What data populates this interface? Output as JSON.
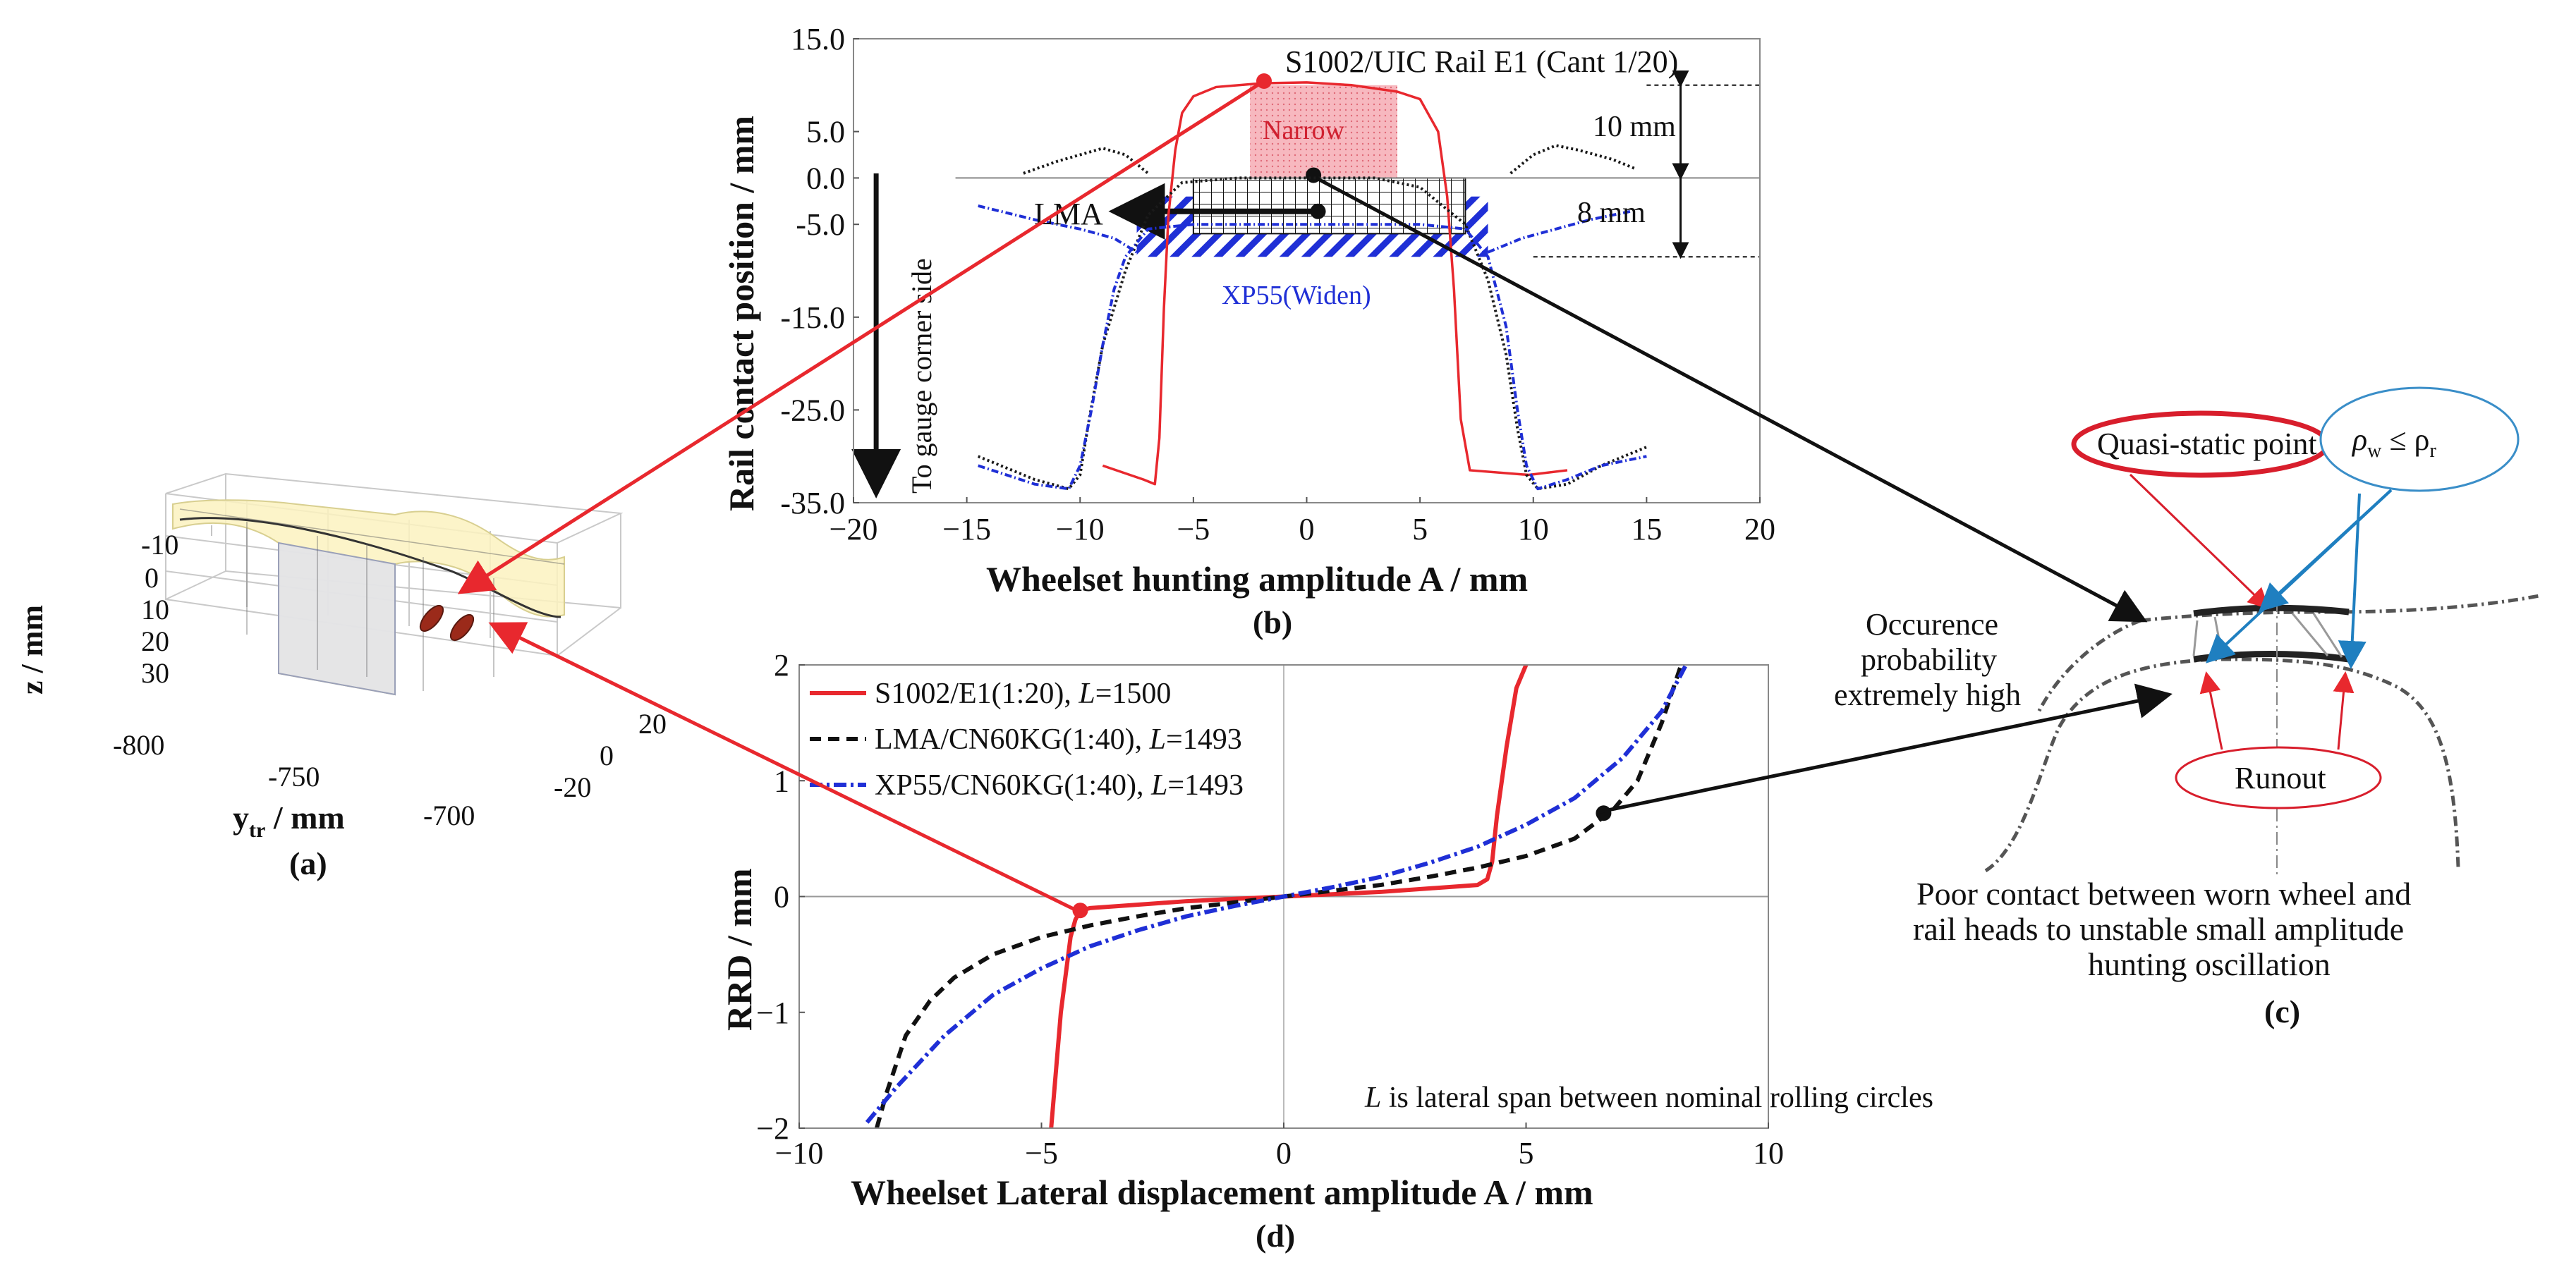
{
  "figure": {
    "label_a": "(a)",
    "label_b": "(b)",
    "label_c": "(c)",
    "label_d": "(d)"
  },
  "panel_a": {
    "zlabel": "z / mm",
    "xlabel": "ytr / mm",
    "xlabel_main": "y",
    "xlabel_sub": "tr",
    "xlabel_unit": " / mm",
    "z_ticks": [
      "-10",
      "0",
      "10",
      "20",
      "30"
    ],
    "x_ticks": [
      "-800",
      "-750",
      "-700"
    ],
    "y_ticks": [
      "20",
      "0",
      "-20"
    ]
  },
  "panel_c": {
    "quasi_static": "Quasi-static point",
    "rho_w": "ρ",
    "rho_w_sub": "w",
    "rho_le": " ≤ ρ",
    "rho_r_sub": "r",
    "occurrence_line1": "Occurence",
    "occurrence_line2": "probability",
    "occurrence_line3": "extremely high",
    "runout": "Runout",
    "caption_line1": "Poor contact between worn wheel and",
    "caption_line2": "rail heads to unstable small amplitude",
    "caption_line3": "hunting oscillation"
  },
  "chart_data": [
    {
      "id": "b",
      "type": "line",
      "title": "S1002/UIC Rail E1 (Cant 1/20)",
      "xlabel": "Wheelset hunting amplitude A / mm",
      "ylabel": "Rail contact position / mm",
      "xlim": [
        -20,
        20
      ],
      "ylim": [
        -35,
        15
      ],
      "x_ticks": [
        -20,
        -15,
        -10,
        -5,
        0,
        5,
        10,
        15,
        20
      ],
      "x_tick_labels": [
        "−20",
        "−15",
        "−10",
        "−5",
        "0",
        "5",
        "10",
        "15",
        "20"
      ],
      "y_ticks": [
        15,
        5,
        0,
        -5,
        -15,
        -25,
        -35
      ],
      "y_tick_labels": [
        "15.0",
        "5.0",
        "0.0",
        "-5.0",
        "-15.0",
        "-25.0",
        "-35.0"
      ],
      "annotations": {
        "narrow": "Narrow",
        "lma": "LMA",
        "xp55": "XP55(Widen)",
        "dim_10": "10 mm",
        "dim_8": "8 mm",
        "gauge": "To gauge corner side"
      },
      "regions": {
        "narrow": {
          "x": [
            -2.5,
            4
          ],
          "y": [
            0,
            10
          ]
        },
        "lma": {
          "x": [
            -5,
            7
          ],
          "y": [
            -6,
            0
          ]
        },
        "xp55": {
          "x": [
            -7.5,
            8
          ],
          "y": [
            -8.5,
            -2
          ]
        }
      },
      "series": [
        {
          "name": "S1002/UIC Rail E1",
          "color": "#e8282e",
          "dash": "",
          "x": [
            -9,
            -7.2,
            -6.7,
            -6.5,
            -6.3,
            -6.1,
            -5.8,
            -5.5,
            -5,
            -4,
            -2,
            0,
            2,
            4,
            5,
            5.8,
            6.2,
            6.5,
            6.8,
            7.2,
            9.8,
            11.5
          ],
          "y": [
            -31,
            -32.5,
            -33,
            -28,
            -14,
            -4,
            3,
            7,
            8.8,
            9.8,
            10.2,
            10.3,
            10,
            9.3,
            8.5,
            5,
            -2,
            -12,
            -26,
            -31.5,
            -32,
            -31.5
          ]
        },
        {
          "name": "LMA",
          "color": "#1a1a1a",
          "dash": "3,4",
          "x": [
            -14.5,
            -12,
            -10.5,
            -10,
            -9.6,
            -9,
            -8,
            -7,
            -5.5,
            -3,
            0,
            3,
            5,
            6,
            7,
            8,
            8.8,
            9.3,
            9.7,
            10.2,
            11.5,
            13,
            15
          ],
          "y": [
            -30,
            -32.5,
            -33.5,
            -32,
            -26,
            -18,
            -10,
            -4,
            -0.5,
            0,
            0,
            0,
            -1,
            -3,
            -5,
            -11,
            -19,
            -27,
            -32,
            -33.5,
            -33,
            -31,
            -29
          ]
        },
        {
          "name": "LMA-top",
          "color": "#1a1a1a",
          "dash": "3,4",
          "x": [
            -12.5,
            -11,
            -9,
            -8,
            -7
          ],
          "y": [
            0.5,
            1.8,
            3.2,
            2.5,
            0.5
          ]
        },
        {
          "name": "LMA-top-right",
          "color": "#1a1a1a",
          "dash": "3,4",
          "x": [
            9,
            10,
            11,
            12,
            13.5,
            14.5
          ],
          "y": [
            0.5,
            2.5,
            3.5,
            3,
            2,
            1
          ]
        },
        {
          "name": "XP55",
          "color": "#1f2fd6",
          "dash": "10,4,2,4",
          "x": [
            -14.5,
            -12,
            -10.5,
            -10,
            -9.5,
            -9,
            -8.5,
            -8,
            -7,
            -5,
            0,
            5,
            7,
            8,
            8.8,
            9.3,
            9.7,
            10.2,
            11.5,
            13,
            15
          ],
          "y": [
            -31,
            -33,
            -33.5,
            -31,
            -25,
            -18,
            -12,
            -8.5,
            -5.5,
            -5,
            -5,
            -5,
            -5.5,
            -8.5,
            -16,
            -25,
            -31,
            -33.5,
            -32.5,
            -31,
            -30
          ]
        },
        {
          "name": "XP55-left-arm",
          "color": "#1f2fd6",
          "dash": "10,4,2,4",
          "x": [
            -14.5,
            -12,
            -10,
            -8.5,
            -7.5
          ],
          "y": [
            -3,
            -4.5,
            -5.5,
            -6.5,
            -8
          ]
        },
        {
          "name": "XP55-right-arm",
          "color": "#1f2fd6",
          "dash": "10,4,2,4",
          "x": [
            8,
            9.5,
            11,
            12.5,
            14.5
          ],
          "y": [
            -8,
            -6.5,
            -5.5,
            -4.5,
            -3.5
          ]
        }
      ]
    },
    {
      "id": "d",
      "type": "line",
      "title": "",
      "xlabel": "Wheelset Lateral displacement amplitude A / mm",
      "ylabel": "RRD / mm",
      "xlim": [
        -10,
        10
      ],
      "ylim": [
        -2,
        2
      ],
      "x_ticks": [
        -10,
        -5,
        0,
        5,
        10
      ],
      "x_tick_labels": [
        "−10",
        "−5",
        "0",
        "5",
        "10"
      ],
      "y_ticks": [
        -2,
        -1,
        0,
        1,
        2
      ],
      "y_tick_labels": [
        "−2",
        "−1",
        "0",
        "1",
        "2"
      ],
      "note": "is lateral span between nominal rolling circles",
      "note_var": "L",
      "legend": [
        {
          "text": "S1002/E1(1:20), ",
          "var": "L",
          "eq": "=1500"
        },
        {
          "text": "LMA/CN60KG(1:40), ",
          "var": "L",
          "eq": "=1493"
        },
        {
          "text": "XP55/CN60KG(1:40), ",
          "var": "L",
          "eq": "=1493"
        }
      ],
      "series": [
        {
          "name": "S1002/E1(1:20), L=1500",
          "color": "#e8282e",
          "dash": "",
          "x": [
            -4.8,
            -4.6,
            -4.4,
            -4.3,
            -4.2,
            -4,
            -3,
            -2,
            -1,
            0,
            1,
            2,
            3,
            4,
            4.2,
            4.3,
            4.4,
            4.6,
            4.8,
            5
          ],
          "y": [
            -2,
            -1,
            -0.35,
            -0.2,
            -0.12,
            -0.1,
            -0.07,
            -0.04,
            -0.02,
            0,
            0.02,
            0.04,
            0.07,
            0.1,
            0.15,
            0.3,
            0.7,
            1.3,
            1.8,
            2
          ]
        },
        {
          "name": "LMA/CN60KG(1:40), L=1493",
          "color": "#111111",
          "dash": "16,10",
          "x": [
            -8.4,
            -8.2,
            -7.8,
            -7.3,
            -6.8,
            -6,
            -5,
            -4,
            -3,
            -2,
            -1,
            0,
            1,
            2,
            3,
            4,
            5,
            6,
            6.8,
            7.3,
            7.8,
            8.2
          ],
          "y": [
            -2,
            -1.7,
            -1.2,
            -0.9,
            -0.7,
            -0.5,
            -0.35,
            -0.25,
            -0.17,
            -0.1,
            -0.05,
            0,
            0.05,
            0.1,
            0.17,
            0.25,
            0.35,
            0.5,
            0.75,
            1.0,
            1.5,
            2
          ]
        },
        {
          "name": "XP55/CN60KG(1:40), L=1493",
          "color": "#1f2fd6",
          "dash": "18,6,4,6",
          "x": [
            -8.6,
            -8,
            -7,
            -6,
            -5,
            -4,
            -3,
            -2,
            -1,
            0,
            1,
            2,
            3,
            4,
            5,
            6,
            7,
            7.8,
            8.3
          ],
          "y": [
            -1.95,
            -1.65,
            -1.2,
            -0.85,
            -0.62,
            -0.43,
            -0.29,
            -0.17,
            -0.08,
            0,
            0.08,
            0.17,
            0.29,
            0.43,
            0.62,
            0.85,
            1.2,
            1.6,
            2
          ]
        }
      ],
      "markers": [
        {
          "x": -4.2,
          "y": -0.12,
          "color": "#e8282e"
        },
        {
          "x": 6.6,
          "y": 0.72,
          "color": "#111111"
        }
      ]
    }
  ]
}
